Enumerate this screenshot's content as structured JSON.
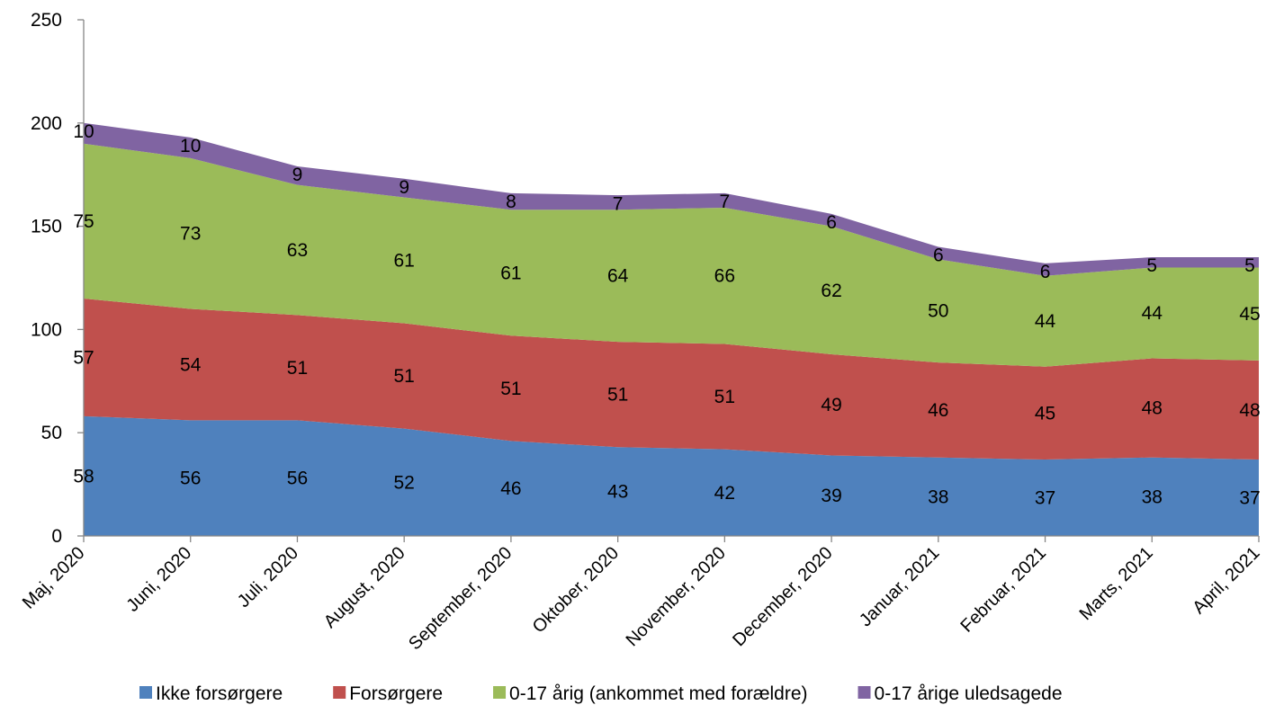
{
  "chart_data": {
    "type": "area",
    "stacked": true,
    "title": "",
    "xlabel": "",
    "ylabel": "",
    "ylim": [
      0,
      250
    ],
    "yticks": [
      0,
      50,
      100,
      150,
      200,
      250
    ],
    "grid": false,
    "legend_position": "bottom",
    "categories": [
      "Maj, 2020",
      "Juni, 2020",
      "Juli, 2020",
      "August, 2020",
      "September, 2020",
      "Oktober, 2020",
      "November, 2020",
      "December, 2020",
      "Januar, 2021",
      "Februar, 2021",
      "Marts, 2021",
      "April, 2021"
    ],
    "series": [
      {
        "name": "Ikke forsørgere",
        "color": "#4f81bd",
        "values": [
          58,
          56,
          56,
          52,
          46,
          43,
          42,
          39,
          38,
          37,
          38,
          37
        ]
      },
      {
        "name": "Forsørgere",
        "color": "#c0504d",
        "values": [
          57,
          54,
          51,
          51,
          51,
          51,
          51,
          49,
          46,
          45,
          48,
          48
        ]
      },
      {
        "name": "0-17 årig (ankommet med forældre)",
        "color": "#9bbb59",
        "values": [
          75,
          73,
          63,
          61,
          61,
          64,
          66,
          62,
          50,
          44,
          44,
          45
        ]
      },
      {
        "name": "0-17 årige uledsagede",
        "color": "#8064a2",
        "values": [
          10,
          10,
          9,
          9,
          8,
          7,
          7,
          6,
          6,
          6,
          5,
          5
        ]
      }
    ]
  }
}
